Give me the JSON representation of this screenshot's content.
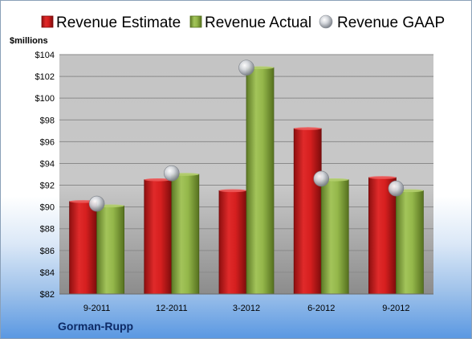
{
  "chart_data": {
    "type": "bar",
    "unit_label": "$millions",
    "categories": [
      "9-2011",
      "12-2011",
      "3-2012",
      "6-2012",
      "9-2012"
    ],
    "series": [
      {
        "name": "Revenue Estimate",
        "kind": "bar",
        "color": "#cc1c1c",
        "values": [
          90.5,
          92.5,
          91.5,
          97.2,
          92.7
        ]
      },
      {
        "name": "Revenue Actual",
        "kind": "bar",
        "color": "#86a93e",
        "values": [
          90.1,
          93.0,
          102.8,
          92.5,
          91.5
        ]
      },
      {
        "name": "Revenue GAAP",
        "kind": "marker",
        "color": "#b8bcc4",
        "values": [
          90.3,
          93.1,
          102.8,
          92.6,
          91.7
        ]
      }
    ],
    "ylim": [
      82,
      104
    ],
    "yticks": [
      "$82",
      "$84",
      "$86",
      "$88",
      "$90",
      "$92",
      "$94",
      "$96",
      "$98",
      "$100",
      "$102",
      "$104"
    ],
    "grid": true,
    "legend_position": "top"
  },
  "company": "Gorman-Rupp"
}
